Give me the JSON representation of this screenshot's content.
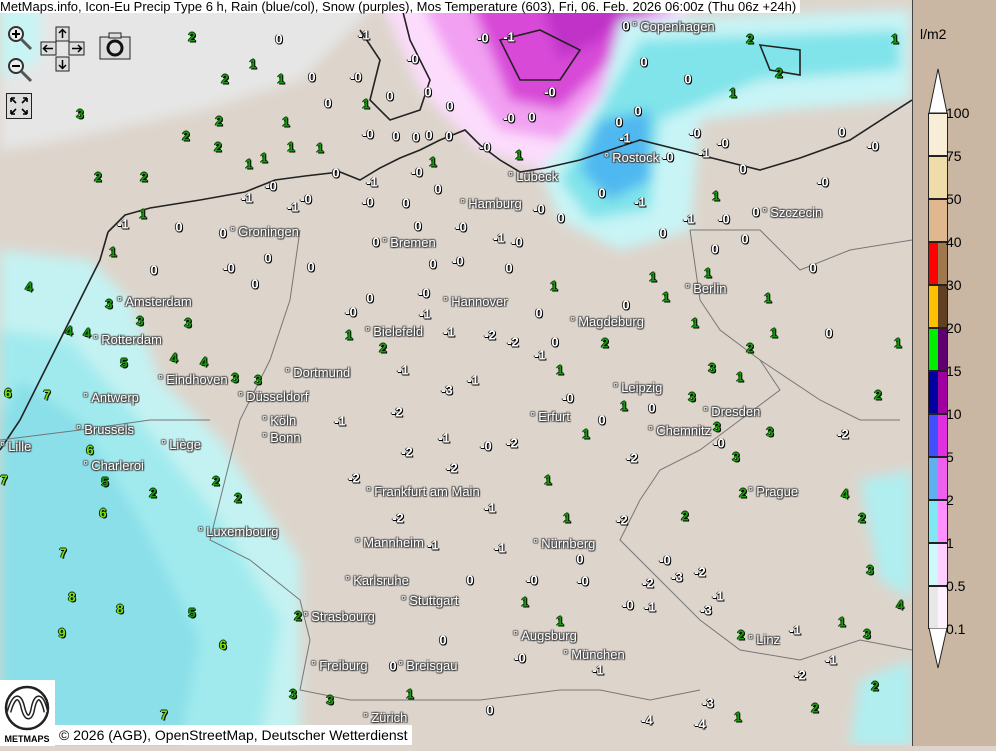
{
  "title": "MetMaps.info, Icon-Eu Precip Type 6 h, Rain (blue/col), Snow (purples), Mos Temperature (603), Fri, 06. Feb. 2026 06:00z (Thu 06z +24h)",
  "controls": {
    "zoom_in": "zoom-in-icon",
    "zoom_out": "zoom-out-icon",
    "pan": "pan-arrows-icon",
    "screenshot": "camera-icon",
    "fullscreen": "fullscreen-icon"
  },
  "legend": {
    "unit": "l/m2",
    "ticks": [
      "100",
      "75",
      "50",
      "40",
      "30",
      "20",
      "15",
      "10",
      "5",
      "2",
      "1",
      "0.5",
      "0.1"
    ],
    "bands": [
      {
        "range": "75-100",
        "rain": "#f8eed8",
        "snow": "#f8eed8"
      },
      {
        "range": "50-75",
        "rain": "#efdca8",
        "snow": "#efdca8"
      },
      {
        "range": "40-50",
        "rain": "#dfb890",
        "snow": "#dfb890"
      },
      {
        "range": "30-40",
        "rain": "#ff0000",
        "snow": "#a07850"
      },
      {
        "range": "20-30",
        "rain": "#ffc000",
        "snow": "#604020"
      },
      {
        "range": "15-20",
        "rain": "#00ee00",
        "snow": "#600070"
      },
      {
        "range": "10-15",
        "rain": "#0000a0",
        "snow": "#a000a0"
      },
      {
        "range": "5-10",
        "rain": "#4050ff",
        "snow": "#e030e0"
      },
      {
        "range": "2-5",
        "rain": "#60b0f0",
        "snow": "#f060f0"
      },
      {
        "range": "1-2",
        "rain": "#80e8f0",
        "snow": "#ff90ff"
      },
      {
        "range": "0.5-1",
        "rain": "#d0f8f8",
        "snow": "#ffd0ff"
      },
      {
        "range": "0.1-0.5",
        "rain": "#e8e8e8",
        "snow": "#fff0ff"
      }
    ]
  },
  "cities": [
    "Copenhagen",
    "Rostock",
    "Lübeck",
    "Hamburg",
    "Szczecin",
    "Groningen",
    "Bremen",
    "Amsterdam",
    "Hannover",
    "Berlin",
    "Rotterdam",
    "Bielefeld",
    "Magdeburg",
    "Eindhoven",
    "Dortmund",
    "Antwerp",
    "Düsseldorf",
    "Leipzig",
    "Dresden",
    "Brussels",
    "Köln",
    "Bonn",
    "Erfurt",
    "Chemnitz",
    "Lille",
    "Liège",
    "Charleroi",
    "Frankfurt am Main",
    "Prague",
    "Luxembourg",
    "Mannheim",
    "Nürnberg",
    "Karlsruhe",
    "Stuttgart",
    "Strasbourg",
    "Augsburg",
    "Linz",
    "München",
    "Freiburg",
    "Breisgau",
    "Zürich"
  ],
  "temperature_values": [
    "2",
    "0",
    "1",
    "2",
    "1",
    "3",
    "2",
    "1",
    "2",
    "2",
    "1",
    "1",
    "1",
    "2",
    "2",
    "-0",
    "-1",
    "-1",
    "1",
    "-1",
    "0",
    "0",
    "1",
    "0",
    "-0",
    "0",
    "0",
    "4",
    "3",
    "3",
    "3",
    "4",
    "4",
    "5",
    "4",
    "4",
    "-1",
    "-0",
    "0",
    "-0",
    "0",
    "1",
    "0",
    "0",
    "0",
    "-0",
    "-1",
    "-0",
    "-0",
    "0",
    "-0",
    "0",
    "0",
    "0",
    "0",
    "1",
    "1",
    "-0",
    "1",
    "0",
    "-0",
    "-1",
    "0",
    "-0",
    "-0",
    "0",
    "-0",
    "0",
    "-0",
    "0",
    "0",
    "-1",
    "-0",
    "0",
    "0",
    "-0",
    "0",
    "1",
    "0",
    "-0",
    "-0",
    "-1",
    "0",
    "1",
    "2",
    "-1",
    "-2",
    "-2",
    "0",
    "0",
    "2",
    "1",
    "0",
    "2",
    "0",
    "1",
    "0",
    "0",
    "-0",
    "0",
    "-0",
    "-0",
    "-1",
    "-0",
    "-1",
    "0",
    "-0",
    "0",
    "-1",
    "1",
    "-1",
    "-0",
    "0",
    "0",
    "0",
    "0",
    "0",
    "1",
    "1",
    "1",
    "1",
    "0",
    "1",
    "1",
    "0",
    "1",
    "2",
    "6",
    "7",
    "7",
    "5",
    "6",
    "6",
    "2",
    "7",
    "8",
    "8",
    "9",
    "5",
    "6",
    "7",
    "-1",
    "-2",
    "-2",
    "-1",
    "-0",
    "-2",
    "-2",
    "-2",
    "1",
    "-2",
    "-3",
    "-1",
    "-1",
    "-2",
    "-1",
    "1",
    "-2",
    "2",
    "-1",
    "-1",
    "0",
    "-0",
    "-3",
    "-2",
    "-3",
    "-1",
    "0",
    "-0",
    "-0",
    "-2",
    "1",
    "-0",
    "-1",
    "0",
    "1",
    "2",
    "-1",
    "1",
    "3",
    "-1",
    "0",
    "-0",
    "-1",
    "-4",
    "-4",
    "-3",
    "-2",
    "2",
    "2",
    "1",
    "0",
    "1",
    "2",
    "4",
    "2",
    "3",
    "4",
    "2",
    "-2",
    "3",
    "3",
    "1",
    "3",
    "3",
    "0",
    "3",
    "-0",
    "1",
    "2",
    "1",
    "-1",
    "-0",
    "0",
    "1",
    "2",
    "3",
    "3",
    "3",
    "3",
    "2",
    "2"
  ],
  "colors": {
    "positive_temp": "#1a9a10",
    "nonpositive_temp": "#ffffff",
    "land": "#ddd5cc",
    "legend_bg": "#c9b7a4"
  },
  "logo_text": "METMAPS",
  "copyright": "© 2026 (AGB), OpenStreetMap, Deutscher Wetterdienst"
}
